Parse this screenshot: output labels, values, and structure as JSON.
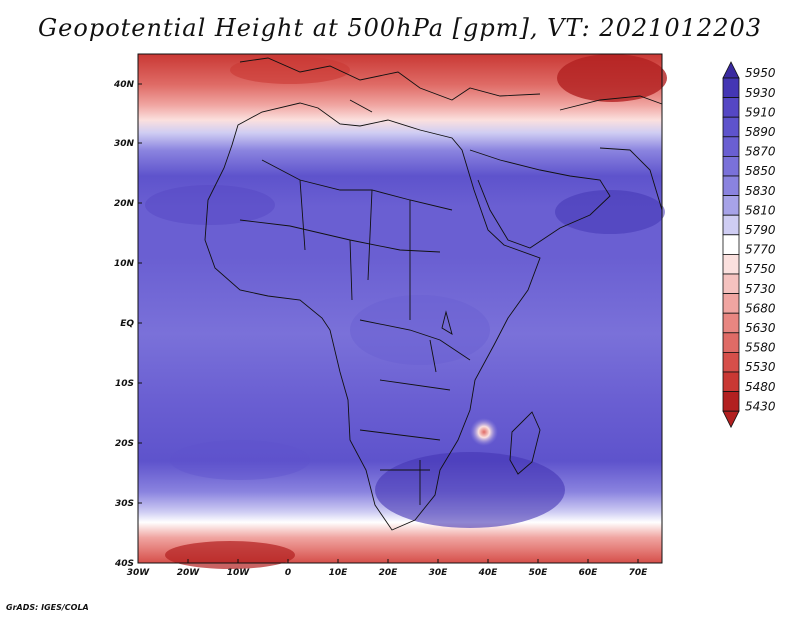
{
  "title": "Geopotential Height at 500hPa [gpm], VT: 2021012203",
  "credit": "GrADS: IGES/COLA",
  "lat_ticks": [
    "40N",
    "30N",
    "20N",
    "10N",
    "EQ",
    "10S",
    "20S",
    "30S",
    "40S"
  ],
  "lon_ticks": [
    "30W",
    "20W",
    "10W",
    "0",
    "10E",
    "20E",
    "30E",
    "40E",
    "50E",
    "60E",
    "70E"
  ],
  "colorbar": {
    "levels": [
      "5950",
      "5930",
      "5910",
      "5890",
      "5870",
      "5850",
      "5830",
      "5810",
      "5790",
      "5770",
      "5750",
      "5730",
      "5680",
      "5630",
      "5580",
      "5530",
      "5480",
      "5430"
    ],
    "colors": [
      "#3a2aa0",
      "#4436b4",
      "#5547c4",
      "#5e53cc",
      "#6a5fd2",
      "#7a71d9",
      "#8a83df",
      "#a7a3e8",
      "#cfcdf3",
      "#ffffff",
      "#fbe0de",
      "#f5c2bf",
      "#f0a5a1",
      "#e88681",
      "#df6b66",
      "#d64f4a",
      "#c93834",
      "#b22020"
    ]
  },
  "map_data": {
    "extent": {
      "lon_min": -30,
      "lon_max": 75,
      "lat_min": -40,
      "lat_max": 45
    },
    "variable": "Geopotential height at 500 hPa",
    "units": "gpm",
    "valid_time": "2021012203"
  }
}
